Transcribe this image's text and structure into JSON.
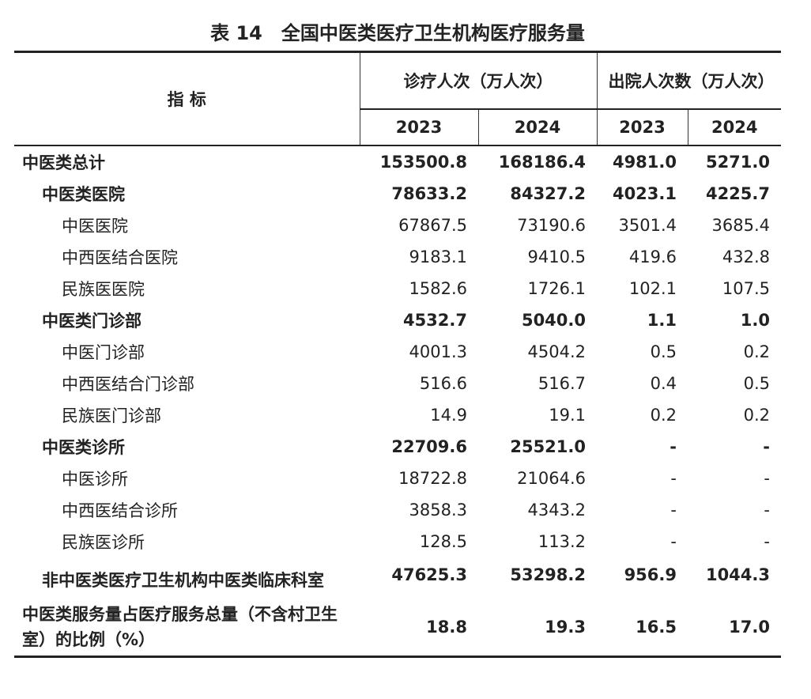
{
  "title": "表 14　全国中医类医疗卫生机构医疗服务量",
  "header": {
    "indicator": "指 标",
    "groups": [
      "诊疗人次（万人次）",
      "出院人次数（万人次）"
    ],
    "years": [
      "2023",
      "2024",
      "2023",
      "2024"
    ]
  },
  "table": {
    "total": {
      "label": "中医类总计",
      "values": [
        "153500.8",
        "168186.4",
        "4981.0",
        "5271.0"
      ]
    },
    "groups": [
      {
        "label": "中医类医院",
        "values": [
          "78633.2",
          "84327.2",
          "4023.1",
          "4225.7"
        ],
        "items": [
          {
            "label": "中医医院",
            "values": [
              "67867.5",
              "73190.6",
              "3501.4",
              "3685.4"
            ]
          },
          {
            "label": "中西医结合医院",
            "values": [
              "9183.1",
              "9410.5",
              "419.6",
              "432.8"
            ]
          },
          {
            "label": "民族医医院",
            "values": [
              "1582.6",
              "1726.1",
              "102.1",
              "107.5"
            ]
          }
        ]
      },
      {
        "label": "中医类门诊部",
        "values": [
          "4532.7",
          "5040.0",
          "1.1",
          "1.0"
        ],
        "items": [
          {
            "label": "中医门诊部",
            "values": [
              "4001.3",
              "4504.2",
              "0.5",
              "0.2"
            ]
          },
          {
            "label": "中西医结合门诊部",
            "values": [
              "516.6",
              "516.7",
              "0.4",
              "0.5"
            ]
          },
          {
            "label": "民族医门诊部",
            "values": [
              "14.9",
              "19.1",
              "0.2",
              "0.2"
            ]
          }
        ]
      },
      {
        "label": "中医类诊所",
        "values": [
          "22709.6",
          "25521.0",
          "-",
          "-"
        ],
        "items": [
          {
            "label": "中医诊所",
            "values": [
              "18722.8",
              "21064.6",
              "-",
              "-"
            ]
          },
          {
            "label": "中西医结合诊所",
            "values": [
              "3858.3",
              "4343.2",
              "-",
              "-"
            ]
          },
          {
            "label": "民族医诊所",
            "values": [
              "128.5",
              "113.2",
              "-",
              "-"
            ]
          }
        ]
      }
    ],
    "extra_rows": [
      {
        "label": "非中医类医疗卫生机构中医类临床科室",
        "values": [
          "47625.3",
          "53298.2",
          "956.9",
          "1044.3"
        ]
      },
      {
        "label": "中医类服务量占医疗服务总量（不含村卫生室）的比例（%）",
        "values": [
          "18.8",
          "19.3",
          "16.5",
          "17.0"
        ]
      }
    ]
  }
}
